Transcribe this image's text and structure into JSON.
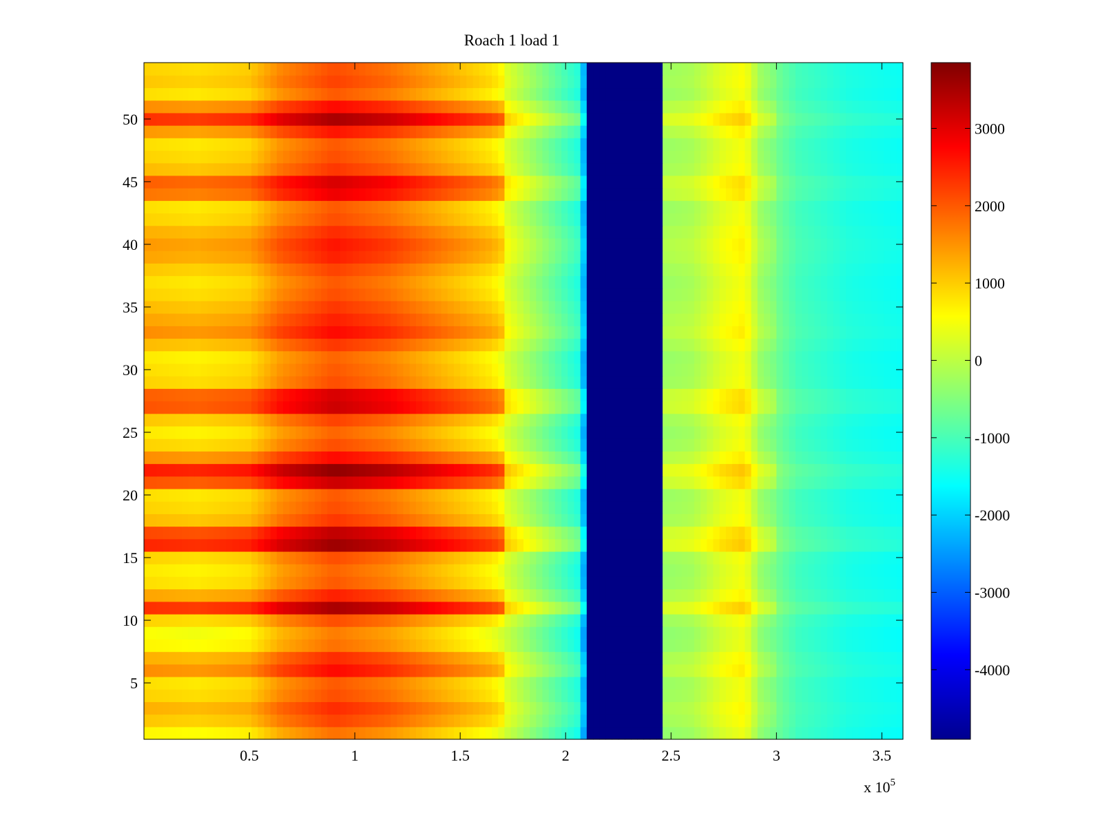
{
  "chart_data": {
    "type": "heatmap",
    "title": "Roach 1 load 1",
    "xlabel": "",
    "ylabel": "",
    "x_multiplier_label": "x 10",
    "x_multiplier_exponent": "5",
    "xlim": [
      0,
      3.6
    ],
    "ylim": [
      0.5,
      54.5
    ],
    "x_ticks": [
      0.5,
      1,
      1.5,
      2,
      2.5,
      3,
      3.5
    ],
    "x_tick_labels": [
      "0.5",
      "1",
      "1.5",
      "2",
      "2.5",
      "3",
      "3.5"
    ],
    "y_ticks": [
      5,
      10,
      15,
      20,
      25,
      30,
      35,
      40,
      45,
      50
    ],
    "y_tick_labels": [
      "5",
      "10",
      "15",
      "20",
      "25",
      "30",
      "35",
      "40",
      "45",
      "50"
    ],
    "rows": 54,
    "clim": [
      -4900,
      3850
    ],
    "colormap": "jet",
    "colorbar": {
      "ticks": [
        3000,
        2000,
        1000,
        0,
        -1000,
        -2000,
        -3000,
        -4000
      ],
      "tick_labels": [
        "3000",
        "2000",
        "1000",
        "0",
        "-1000",
        "-2000",
        "-3000",
        "-4000"
      ]
    },
    "x_profile": [
      {
        "x": 0.0,
        "v": 650
      },
      {
        "x": 0.25,
        "v": 550
      },
      {
        "x": 0.5,
        "v": 700
      },
      {
        "x": 0.65,
        "v": 1300
      },
      {
        "x": 0.9,
        "v": 1800
      },
      {
        "x": 1.15,
        "v": 1500
      },
      {
        "x": 1.4,
        "v": 1000
      },
      {
        "x": 1.65,
        "v": 500
      },
      {
        "x": 1.8,
        "v": -200
      },
      {
        "x": 1.95,
        "v": -900
      },
      {
        "x": 2.08,
        "v": -1500
      },
      {
        "x": 2.1,
        "v": -4850
      },
      {
        "x": 2.45,
        "v": -4850
      },
      {
        "x": 2.47,
        "v": -300
      },
      {
        "x": 2.6,
        "v": -200
      },
      {
        "x": 2.75,
        "v": 300
      },
      {
        "x": 2.85,
        "v": 500
      },
      {
        "x": 2.92,
        "v": -300
      },
      {
        "x": 3.1,
        "v": -1000
      },
      {
        "x": 3.35,
        "v": -1350
      },
      {
        "x": 3.6,
        "v": -1500
      }
    ],
    "row_offsets": [
      {
        "row": 1,
        "v": 0
      },
      {
        "row": 2,
        "v": 400
      },
      {
        "row": 3,
        "v": 600
      },
      {
        "row": 4,
        "v": 300
      },
      {
        "row": 5,
        "v": 200
      },
      {
        "row": 6,
        "v": 900
      },
      {
        "row": 7,
        "v": 600
      },
      {
        "row": 8,
        "v": 0
      },
      {
        "row": 9,
        "v": -100
      },
      {
        "row": 10,
        "v": 300
      },
      {
        "row": 11,
        "v": 1700
      },
      {
        "row": 12,
        "v": 700
      },
      {
        "row": 13,
        "v": 200
      },
      {
        "row": 14,
        "v": 100
      },
      {
        "row": 15,
        "v": 300
      },
      {
        "row": 16,
        "v": 1800
      },
      {
        "row": 17,
        "v": 1500
      },
      {
        "row": 18,
        "v": 500
      },
      {
        "row": 19,
        "v": 300
      },
      {
        "row": 20,
        "v": 200
      },
      {
        "row": 21,
        "v": 1400
      },
      {
        "row": 22,
        "v": 1900
      },
      {
        "row": 23,
        "v": 900
      },
      {
        "row": 24,
        "v": 300
      },
      {
        "row": 25,
        "v": 100
      },
      {
        "row": 26,
        "v": 400
      },
      {
        "row": 27,
        "v": 1400
      },
      {
        "row": 28,
        "v": 1300
      },
      {
        "row": 29,
        "v": 300
      },
      {
        "row": 30,
        "v": 200
      },
      {
        "row": 31,
        "v": 100
      },
      {
        "row": 32,
        "v": 500
      },
      {
        "row": 33,
        "v": 900
      },
      {
        "row": 34,
        "v": 700
      },
      {
        "row": 35,
        "v": 500
      },
      {
        "row": 36,
        "v": 300
      },
      {
        "row": 37,
        "v": 200
      },
      {
        "row": 38,
        "v": 400
      },
      {
        "row": 39,
        "v": 700
      },
      {
        "row": 40,
        "v": 800
      },
      {
        "row": 41,
        "v": 600
      },
      {
        "row": 42,
        "v": 300
      },
      {
        "row": 43,
        "v": 200
      },
      {
        "row": 44,
        "v": 1100
      },
      {
        "row": 45,
        "v": 1300
      },
      {
        "row": 46,
        "v": 500
      },
      {
        "row": 47,
        "v": 300
      },
      {
        "row": 48,
        "v": 200
      },
      {
        "row": 49,
        "v": 800
      },
      {
        "row": 50,
        "v": 1700
      },
      {
        "row": 51,
        "v": 900
      },
      {
        "row": 52,
        "v": 200
      },
      {
        "row": 53,
        "v": 400
      },
      {
        "row": 54,
        "v": 300
      }
    ]
  }
}
